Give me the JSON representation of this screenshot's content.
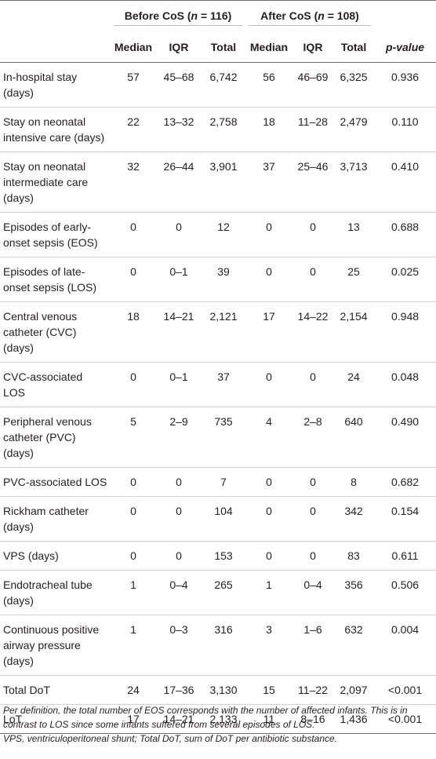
{
  "table": {
    "groups": {
      "before": {
        "prefix": "Before CoS (",
        "n_symbol": "n",
        "suffix": " = 116)"
      },
      "after": {
        "prefix": "After CoS (",
        "n_symbol": "n",
        "suffix": " = 108)"
      }
    },
    "columns": {
      "median": "Median",
      "iqr": "IQR",
      "total": "Total",
      "p_value": "p-value"
    },
    "rows": [
      {
        "label": "In-hospital stay (days)",
        "b_median": "57",
        "b_iqr": "45–68",
        "b_total": "6,742",
        "a_median": "56",
        "a_iqr": "46–69",
        "a_total": "6,325",
        "p": "0.936"
      },
      {
        "label": "Stay on neonatal intensive care (days)",
        "b_median": "22",
        "b_iqr": "13–32",
        "b_total": "2,758",
        "a_median": "18",
        "a_iqr": "11–28",
        "a_total": "2,479",
        "p": "0.110"
      },
      {
        "label": "Stay on neonatal intermediate care (days)",
        "b_median": "32",
        "b_iqr": "26–44",
        "b_total": "3,901",
        "a_median": "37",
        "a_iqr": "25–46",
        "a_total": "3,713",
        "p": "0.410"
      },
      {
        "label": "Episodes of early-onset sepsis (EOS)",
        "b_median": "0",
        "b_iqr": "0",
        "b_total": "12",
        "a_median": "0",
        "a_iqr": "0",
        "a_total": "13",
        "p": "0.688"
      },
      {
        "label": "Episodes of late-onset sepsis (LOS)",
        "b_median": "0",
        "b_iqr": "0–1",
        "b_total": "39",
        "a_median": "0",
        "a_iqr": "0",
        "a_total": "25",
        "p": "0.025"
      },
      {
        "label": "Central venous catheter (CVC) (days)",
        "b_median": "18",
        "b_iqr": "14–21",
        "b_total": "2,121",
        "a_median": "17",
        "a_iqr": "14–22",
        "a_total": "2,154",
        "p": "0.948"
      },
      {
        "label": "CVC-associated LOS",
        "b_median": "0",
        "b_iqr": "0–1",
        "b_total": "37",
        "a_median": "0",
        "a_iqr": "0",
        "a_total": "24",
        "p": "0.048"
      },
      {
        "label": "Peripheral venous catheter (PVC) (days)",
        "b_median": "5",
        "b_iqr": "2–9",
        "b_total": "735",
        "a_median": "4",
        "a_iqr": "2–8",
        "a_total": "640",
        "p": "0.490"
      },
      {
        "label": "PVC-associated LOS",
        "b_median": "0",
        "b_iqr": "0",
        "b_total": "7",
        "a_median": "0",
        "a_iqr": "0",
        "a_total": "8",
        "p": "0.682"
      },
      {
        "label": "Rickham catheter (days)",
        "b_median": "0",
        "b_iqr": "0",
        "b_total": "104",
        "a_median": "0",
        "a_iqr": "0",
        "a_total": "342",
        "p": "0.154"
      },
      {
        "label": "VPS (days)",
        "b_median": "0",
        "b_iqr": "0",
        "b_total": "153",
        "a_median": "0",
        "a_iqr": "0",
        "a_total": "83",
        "p": "0.611"
      },
      {
        "label": "Endotracheal tube (days)",
        "b_median": "1",
        "b_iqr": "0–4",
        "b_total": "265",
        "a_median": "1",
        "a_iqr": "0–4",
        "a_total": "356",
        "p": "0.506"
      },
      {
        "label": "Continuous positive airway pressure (days)",
        "b_median": "1",
        "b_iqr": "0–3",
        "b_total": "316",
        "a_median": "3",
        "a_iqr": "1–6",
        "a_total": "632",
        "p": "0.004"
      },
      {
        "label": "Total DoT",
        "b_median": "24",
        "b_iqr": "17–36",
        "b_total": "3,130",
        "a_median": "15",
        "a_iqr": "11–22",
        "a_total": "2,097",
        "p": "<0.001"
      },
      {
        "label": "LoT",
        "b_median": "17",
        "b_iqr": "14–21",
        "b_total": "2,133",
        "a_median": "11",
        "a_iqr": "8–16",
        "a_total": "1,436",
        "p": "<0.001"
      }
    ]
  },
  "footnote": {
    "line1": "Per definition, the total number of EOS corresponds with the number of affected infants. This is in contrast to LOS since some infants suffered from several episodes of LOS.",
    "line2": "VPS, ventriculoperitoneal shunt; Total DoT, sum of DoT per antibiotic substance."
  }
}
